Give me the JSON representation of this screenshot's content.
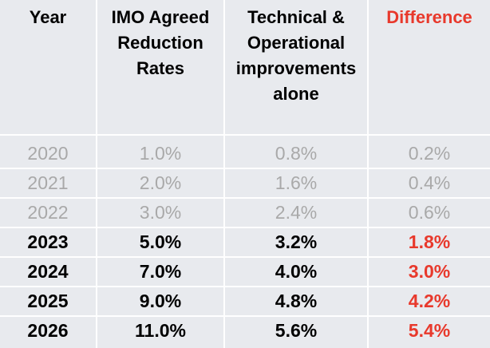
{
  "headers": {
    "year": "Year",
    "imo_line1": "IMO Agreed",
    "imo_line2": "Reduction",
    "imo_line3": "Rates",
    "tech_line1": "Technical &",
    "tech_line2": "Operational",
    "tech_line3": "improvements",
    "tech_line4": "alone",
    "difference": "Difference"
  },
  "rows": [
    {
      "year": "2020",
      "imo": "1.0%",
      "tech": "0.8%",
      "diff": "0.2%",
      "style": "faded"
    },
    {
      "year": "2021",
      "imo": "2.0%",
      "tech": "1.6%",
      "diff": "0.4%",
      "style": "faded"
    },
    {
      "year": "2022",
      "imo": "3.0%",
      "tech": "2.4%",
      "diff": "0.6%",
      "style": "faded"
    },
    {
      "year": "2023",
      "imo": "5.0%",
      "tech": "3.2%",
      "diff": "1.8%",
      "style": "strong"
    },
    {
      "year": "2024",
      "imo": "7.0%",
      "tech": "4.0%",
      "diff": "3.0%",
      "style": "strong"
    },
    {
      "year": "2025",
      "imo": "9.0%",
      "tech": "4.8%",
      "diff": "4.2%",
      "style": "strong"
    },
    {
      "year": "2026",
      "imo": "11.0%",
      "tech": "5.6%",
      "diff": "5.4%",
      "style": "strong"
    }
  ],
  "colors": {
    "background": "#e8eaee",
    "faded_text": "#a9a9a9",
    "highlight_red": "#e8392c",
    "grid_lines": "#ffffff"
  }
}
